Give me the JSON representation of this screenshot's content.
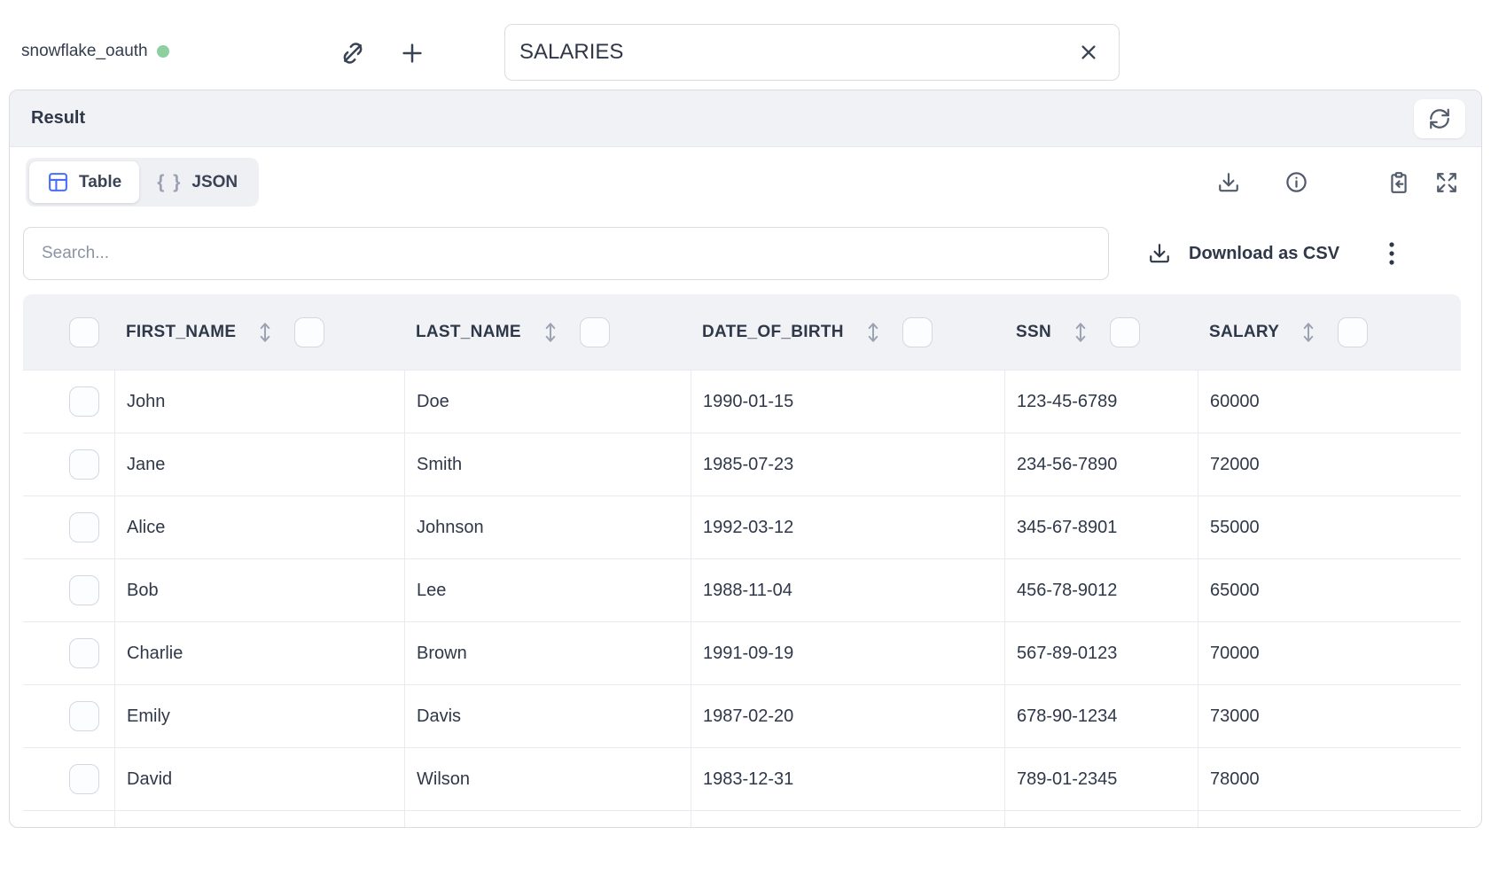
{
  "topbar": {
    "connection_label": "snowflake_oauth",
    "connection_status_color": "#8ecf9f",
    "table_input_value": "SALARIES"
  },
  "result_panel": {
    "title": "Result",
    "tabs": {
      "table_label": "Table",
      "json_label": "JSON",
      "json_icon_glyph": "{ }"
    },
    "search_placeholder": "Search...",
    "download_csv_label": "Download as CSV"
  },
  "table": {
    "columns": [
      "FIRST_NAME",
      "LAST_NAME",
      "DATE_OF_BIRTH",
      "SSN",
      "SALARY"
    ],
    "rows": [
      [
        "John",
        "Doe",
        "1990-01-15",
        "123-45-6789",
        "60000"
      ],
      [
        "Jane",
        "Smith",
        "1985-07-23",
        "234-56-7890",
        "72000"
      ],
      [
        "Alice",
        "Johnson",
        "1992-03-12",
        "345-67-8901",
        "55000"
      ],
      [
        "Bob",
        "Lee",
        "1988-11-04",
        "456-78-9012",
        "65000"
      ],
      [
        "Charlie",
        "Brown",
        "1991-09-19",
        "567-89-0123",
        "70000"
      ],
      [
        "Emily",
        "Davis",
        "1987-02-20",
        "678-90-1234",
        "73000"
      ],
      [
        "David",
        "Wilson",
        "1983-12-31",
        "789-01-2345",
        "78000"
      ]
    ]
  },
  "colors": {
    "accent_blue": "#4a6df8",
    "status_green": "#8ecf9f",
    "header_bg": "#f0f2f5"
  }
}
